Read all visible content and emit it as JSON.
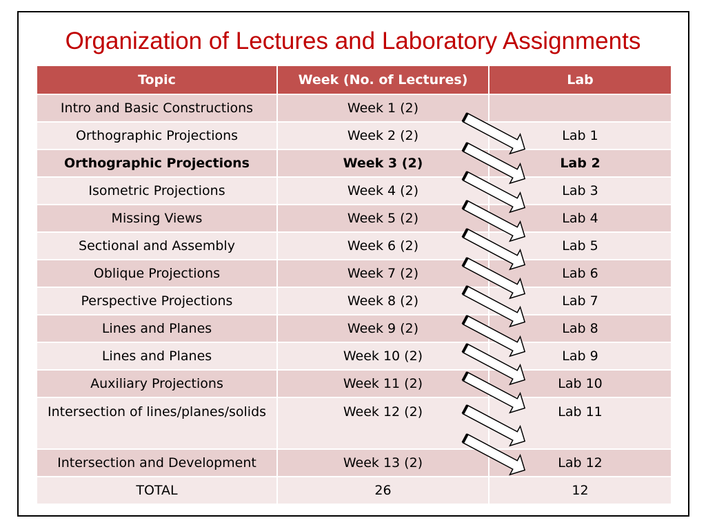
{
  "title": "Organization of Lectures and Laboratory Assignments",
  "table": {
    "headers": [
      "Topic",
      "Week (No. of Lectures)",
      "Lab"
    ],
    "rows": [
      {
        "topic": "Intro and Basic Constructions",
        "week": "Week 1 (2)",
        "lab": ""
      },
      {
        "topic": "Orthographic Projections",
        "week": "Week 2 (2)",
        "lab": "Lab 1"
      },
      {
        "topic": "Orthographic Projections",
        "week": "Week 3 (2)",
        "lab": "Lab 2"
      },
      {
        "topic": "Isometric Projections",
        "week": "Week 4 (2)",
        "lab": "Lab 3"
      },
      {
        "topic": "Missing Views",
        "week": "Week 5 (2)",
        "lab": "Lab 4"
      },
      {
        "topic": "Sectional and Assembly",
        "week": "Week 6 (2)",
        "lab": "Lab 5"
      },
      {
        "topic": "Oblique Projections",
        "week": "Week 7 (2)",
        "lab": "Lab 6"
      },
      {
        "topic": "Perspective Projections",
        "week": "Week 8 (2)",
        "lab": "Lab 7"
      },
      {
        "topic": "Lines and Planes",
        "week": "Week 9 (2)",
        "lab": "Lab 8"
      },
      {
        "topic": "Lines and Planes",
        "week": "Week 10 (2)",
        "lab": "Lab 9"
      },
      {
        "topic": "Auxiliary Projections",
        "week": "Week 11 (2)",
        "lab": "Lab 10"
      },
      {
        "topic": "Intersection of lines/planes/solids",
        "week": "Week 12 (2)",
        "lab": "Lab 11"
      },
      {
        "topic": "Intersection and Development",
        "week": "Week 13 (2)",
        "lab": "Lab 12"
      },
      {
        "topic": "TOTAL",
        "week": "26",
        "lab": "12"
      }
    ]
  },
  "colors": {
    "title": "#c00000",
    "header_bg": "#c0504d",
    "row_dark": "#e8cfcf",
    "row_light": "#f4e8e8"
  },
  "arrow_icon": "arrow-right-down-icon"
}
